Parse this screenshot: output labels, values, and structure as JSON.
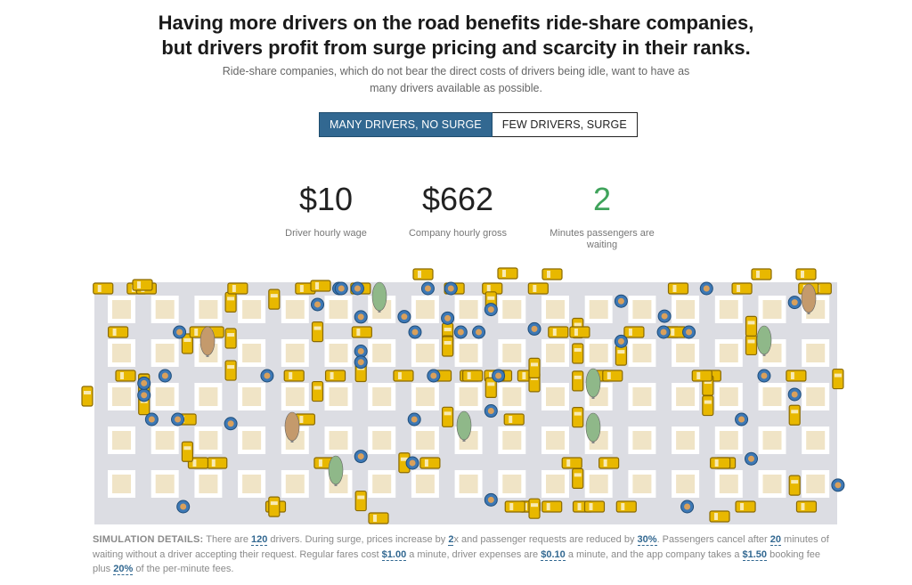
{
  "header": {
    "title_line1": "Having more drivers on the road benefits ride-share companies,",
    "title_line2": "but drivers profit from surge pricing and scarcity in their ranks.",
    "subtitle_line1": "Ride-share companies, which do not bear the direct costs of drivers being idle, want to have as",
    "subtitle_line2": "many drivers available as possible."
  },
  "toggle": {
    "option_active": "MANY DRIVERS, NO SURGE",
    "option_inactive": "FEW DRIVERS, SURGE"
  },
  "stats": [
    {
      "value": "$10",
      "label": "Driver hourly wage"
    },
    {
      "value": "$662",
      "label": "Company hourly gross"
    },
    {
      "value": "2",
      "label_line1": "Minutes passengers are",
      "label_line2": "waiting"
    }
  ],
  "colors": {
    "accent": "#326891",
    "stat_green": "#3fa35b",
    "road": "#dcdde3",
    "block": "#f0e4c6",
    "car_yellow": "#e8b800",
    "car_outline": "#8a6a00",
    "passenger_blue": "#3d78b5",
    "tree_green": "#8fb889",
    "tree_brown": "#c49a6c"
  },
  "details": {
    "caption": "SIMULATION DETAILS:",
    "t1": " There are ",
    "drivers": "120",
    "t2": " drivers. During surge, prices increase by ",
    "surge_multiplier": "2",
    "t3": "x and passenger requests are reduced by ",
    "request_reduction": "30%",
    "t4": ". Passengers cancel after ",
    "cancel_minutes": "20",
    "t5": " minutes of waiting without a driver accepting their request. Regular fares cost ",
    "fare": "$1.00",
    "t6": " a minute, driver expenses are ",
    "expenses": "$0.10",
    "t7": " a minute, and the app company takes a ",
    "booking_fee": "$1.50",
    "t8": " booking fee plus ",
    "per_minute_cut": "20%",
    "t9": " of the per-minute fees."
  }
}
